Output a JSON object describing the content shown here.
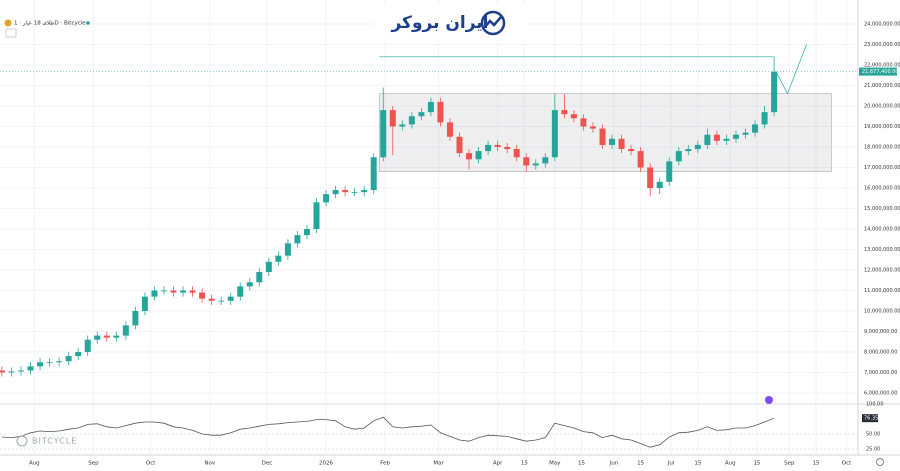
{
  "chart_data": {
    "type": "candlestick",
    "title": "طلای 18 عیار · 1D · Bitcycle",
    "brand": "ایران بروکر",
    "watermark": "BITCYCLE",
    "up_color": "#26a69a",
    "down_color": "#ef5350",
    "grid": true,
    "x": [
      "2025-07-15",
      "2025-07-20",
      "2025-07-25",
      "2025-07-30",
      "2025-08-04",
      "2025-08-09",
      "2025-08-14",
      "2025-08-19",
      "2025-08-24",
      "2025-08-29",
      "2025-09-03",
      "2025-09-08",
      "2025-09-13",
      "2025-09-18",
      "2025-09-23",
      "2025-09-28",
      "2025-10-03",
      "2025-10-08",
      "2025-10-13",
      "2025-10-18",
      "2025-10-23",
      "2025-10-28",
      "2025-11-02",
      "2025-11-07",
      "2025-11-12",
      "2025-11-17",
      "2025-11-22",
      "2025-11-27",
      "2025-12-02",
      "2025-12-07",
      "2025-12-12",
      "2025-12-17",
      "2025-12-22",
      "2025-12-27",
      "2026-01-01",
      "2026-01-06",
      "2026-01-11",
      "2026-01-16",
      "2026-01-21",
      "2026-01-26",
      "2026-01-31",
      "2026-02-05",
      "2026-02-10",
      "2026-02-15",
      "2026-02-20",
      "2026-02-25",
      "2026-03-02",
      "2026-03-07",
      "2026-03-12",
      "2026-03-17",
      "2026-03-22",
      "2026-03-27",
      "2026-04-01",
      "2026-04-06",
      "2026-04-11",
      "2026-04-16",
      "2026-04-21",
      "2026-04-26",
      "2026-05-01",
      "2026-05-06",
      "2026-05-11",
      "2026-05-16",
      "2026-05-21",
      "2026-05-26",
      "2026-05-31",
      "2026-06-05",
      "2026-06-10",
      "2026-06-15",
      "2026-06-20",
      "2026-06-25",
      "2026-06-30",
      "2026-07-05",
      "2026-07-10",
      "2026-07-15",
      "2026-07-20",
      "2026-07-25",
      "2026-07-30",
      "2026-08-04",
      "2026-08-09",
      "2026-08-14",
      "2026-08-19",
      "2026-08-24"
    ],
    "open": [
      7100000,
      7000000,
      7050000,
      7100000,
      7300000,
      7500000,
      7500000,
      7550000,
      7800000,
      8000000,
      8600000,
      8800000,
      8700000,
      8800000,
      9300000,
      10000000,
      10700000,
      11000000,
      11000000,
      10900000,
      11000000,
      10900000,
      10600000,
      10500000,
      10500000,
      10700000,
      11200000,
      11400000,
      11900000,
      12400000,
      12700000,
      13300000,
      13700000,
      14000000,
      15300000,
      15700000,
      15900000,
      15800000,
      15800000,
      15900000,
      17500000,
      19800000,
      19000000,
      19100000,
      19500000,
      19700000,
      20200000,
      19200000,
      18500000,
      17700000,
      17400000,
      17800000,
      18100000,
      18000000,
      17900000,
      17500000,
      17100000,
      17200000,
      17500000,
      19800000,
      19600000,
      19400000,
      19000000,
      18900000,
      18100000,
      18400000,
      17900000,
      17800000,
      17000000,
      16000000,
      16300000,
      17300000,
      17800000,
      17900000,
      18100000,
      18600000,
      18300000,
      18400000,
      18600000,
      18700000,
      19100000,
      19700000
    ],
    "high": [
      7300000,
      7250000,
      7300000,
      7500000,
      7700000,
      7700000,
      7750000,
      8000000,
      8200000,
      8800000,
      9000000,
      9000000,
      9000000,
      9500000,
      10200000,
      10900000,
      11200000,
      11200000,
      11200000,
      11200000,
      11200000,
      11100000,
      10800000,
      10700000,
      10900000,
      11400000,
      11600000,
      12100000,
      12600000,
      12900000,
      13500000,
      13900000,
      14200000,
      15500000,
      15900000,
      16100000,
      16100000,
      16000000,
      16100000,
      17700000,
      20900000,
      20000000,
      19300000,
      19700000,
      19900000,
      20400000,
      20400000,
      19400000,
      18700000,
      17900000,
      18000000,
      18300000,
      18300000,
      18200000,
      18100000,
      17700000,
      17400000,
      17700000,
      20600000,
      20600000,
      19800000,
      19600000,
      19200000,
      19100000,
      18600000,
      18600000,
      18100000,
      18000000,
      17200000,
      16500000,
      17500000,
      18000000,
      18100000,
      18300000,
      18900000,
      18800000,
      18600000,
      18800000,
      18900000,
      19300000,
      20000000,
      22400000
    ],
    "low": [
      6800000,
      6800000,
      6850000,
      6900000,
      7100000,
      7300000,
      7300000,
      7350000,
      7600000,
      7800000,
      8400000,
      8500000,
      8500000,
      8600000,
      9100000,
      9800000,
      10500000,
      10800000,
      10700000,
      10700000,
      10700000,
      10400000,
      10300000,
      10300000,
      10300000,
      10500000,
      11000000,
      11200000,
      11700000,
      12200000,
      12500000,
      13100000,
      13500000,
      13800000,
      15100000,
      15500000,
      15600000,
      15600000,
      15600000,
      15700000,
      17300000,
      17600000,
      18800000,
      18900000,
      19300000,
      19500000,
      19000000,
      18300000,
      17500000,
      16900000,
      17200000,
      17600000,
      17800000,
      17700000,
      17300000,
      16800000,
      16900000,
      17000000,
      17300000,
      19400000,
      19200000,
      18800000,
      18700000,
      17900000,
      17900000,
      17700000,
      17600000,
      16800000,
      15600000,
      15700000,
      16100000,
      17100000,
      17600000,
      17700000,
      17900000,
      18100000,
      18100000,
      18200000,
      18400000,
      18500000,
      18900000,
      19500000
    ],
    "close": [
      7000000,
      7050000,
      7100000,
      7300000,
      7500000,
      7500000,
      7550000,
      7800000,
      8000000,
      8600000,
      8800000,
      8700000,
      8800000,
      9300000,
      10000000,
      10700000,
      11000000,
      11000000,
      10900000,
      11000000,
      10900000,
      10600000,
      10500000,
      10500000,
      10700000,
      11200000,
      11400000,
      11900000,
      12400000,
      12700000,
      13300000,
      13700000,
      14000000,
      15300000,
      15700000,
      15900000,
      15800000,
      15800000,
      15900000,
      17500000,
      19800000,
      19000000,
      19100000,
      19500000,
      19700000,
      20200000,
      19200000,
      18500000,
      17700000,
      17400000,
      17800000,
      18100000,
      18000000,
      17900000,
      17500000,
      17100000,
      17200000,
      17500000,
      19800000,
      19600000,
      19400000,
      19000000,
      18900000,
      18100000,
      18400000,
      17900000,
      17800000,
      17000000,
      16000000,
      16300000,
      17300000,
      17800000,
      17900000,
      18100000,
      18600000,
      18300000,
      18400000,
      18600000,
      18700000,
      19100000,
      19700000,
      21677400
    ],
    "price_marker": {
      "value": 21677400,
      "label": "21,677,400.00"
    },
    "xlim": [
      "2025-07-14",
      "2026-10-07"
    ],
    "xticks": [
      {
        "value": "2025-08-01",
        "label": "Aug"
      },
      {
        "value": "2025-09-01",
        "label": "Sep"
      },
      {
        "value": "2025-10-01",
        "label": "Oct"
      },
      {
        "value": "2025-11-01",
        "label": "Nov"
      },
      {
        "value": "2025-12-01",
        "label": "Dec"
      },
      {
        "value": "2026-01-01",
        "label": "2026"
      },
      {
        "value": "2026-02-01",
        "label": "Feb"
      },
      {
        "value": "2026-03-01",
        "label": "Mar"
      },
      {
        "value": "2026-04-01",
        "label": "Apr"
      },
      {
        "value": "2026-04-15",
        "label": "15"
      },
      {
        "value": "2026-05-01",
        "label": "May"
      },
      {
        "value": "2026-05-15",
        "label": "15"
      },
      {
        "value": "2026-06-01",
        "label": "Jun"
      },
      {
        "value": "2026-06-15",
        "label": "15"
      },
      {
        "value": "2026-07-01",
        "label": "Jul"
      },
      {
        "value": "2026-07-15",
        "label": "15"
      },
      {
        "value": "2026-08-01",
        "label": "Aug"
      },
      {
        "value": "2026-08-15",
        "label": "15"
      },
      {
        "value": "2026-09-01",
        "label": "Sep"
      },
      {
        "value": "2026-09-15",
        "label": "15"
      },
      {
        "value": "2026-10-01",
        "label": "Oct"
      }
    ],
    "ylim": [
      5000000,
      25000000
    ],
    "yticks": [
      {
        "value": 6000000,
        "label": "6,000,000.00"
      },
      {
        "value": 7000000,
        "label": "7,000,000.00"
      },
      {
        "value": 8000000,
        "label": "8,000,000.00"
      },
      {
        "value": 9000000,
        "label": "9,000,000.00"
      },
      {
        "value": 10000000,
        "label": "10,000,000.00"
      },
      {
        "value": 11000000,
        "label": "11,000,000.00"
      },
      {
        "value": 12000000,
        "label": "12,000,000.00"
      },
      {
        "value": 13000000,
        "label": "13,000,000.00"
      },
      {
        "value": 14000000,
        "label": "14,000,000.00"
      },
      {
        "value": 15000000,
        "label": "15,000,000.00"
      },
      {
        "value": 16000000,
        "label": "16,000,000.00"
      },
      {
        "value": 17000000,
        "label": "17,000,000.00"
      },
      {
        "value": 18000000,
        "label": "18,000,000.00"
      },
      {
        "value": 19000000,
        "label": "19,000,000.00"
      },
      {
        "value": 20000000,
        "label": "20,000,000.00"
      },
      {
        "value": 21000000,
        "label": "21,000,000.00"
      },
      {
        "value": 22000000,
        "label": "22,000,000.00"
      },
      {
        "value": 23000000,
        "label": "23,000,000.00"
      },
      {
        "value": 24000000,
        "label": "24,000,000.00"
      }
    ],
    "zone": {
      "start": "2026-01-29",
      "end": "2026-09-23",
      "top": 20600000,
      "bottom": 16800000
    },
    "top_line": {
      "start": "2026-01-29",
      "end": "2026-08-24",
      "value": 22400000
    },
    "projection": {
      "x": [
        "2026-08-25",
        "2026-08-31",
        "2026-09-10"
      ],
      "values": [
        21677400,
        20600000,
        23000000
      ]
    },
    "rsi": {
      "color": "#555555",
      "values": [
        45,
        44,
        46,
        52,
        55,
        54,
        55,
        58,
        60,
        66,
        67,
        62,
        60,
        64,
        68,
        70,
        70,
        68,
        62,
        60,
        56,
        50,
        48,
        48,
        52,
        58,
        60,
        63,
        66,
        67,
        69,
        70,
        71,
        74,
        74,
        72,
        62,
        58,
        60,
        72,
        78,
        62,
        60,
        62,
        63,
        65,
        52,
        46,
        40,
        38,
        44,
        48,
        47,
        46,
        42,
        38,
        40,
        44,
        68,
        64,
        60,
        54,
        52,
        44,
        48,
        42,
        40,
        34,
        28,
        32,
        45,
        52,
        53,
        56,
        62,
        56,
        57,
        60,
        60,
        64,
        70,
        76.35
      ],
      "ylim": [
        10,
        100
      ],
      "yticks": [
        {
          "value": 25,
          "label": "25.00"
        },
        {
          "value": 50,
          "label": "50.00"
        },
        {
          "value": 100,
          "label": "100.00"
        }
      ]
    }
  }
}
